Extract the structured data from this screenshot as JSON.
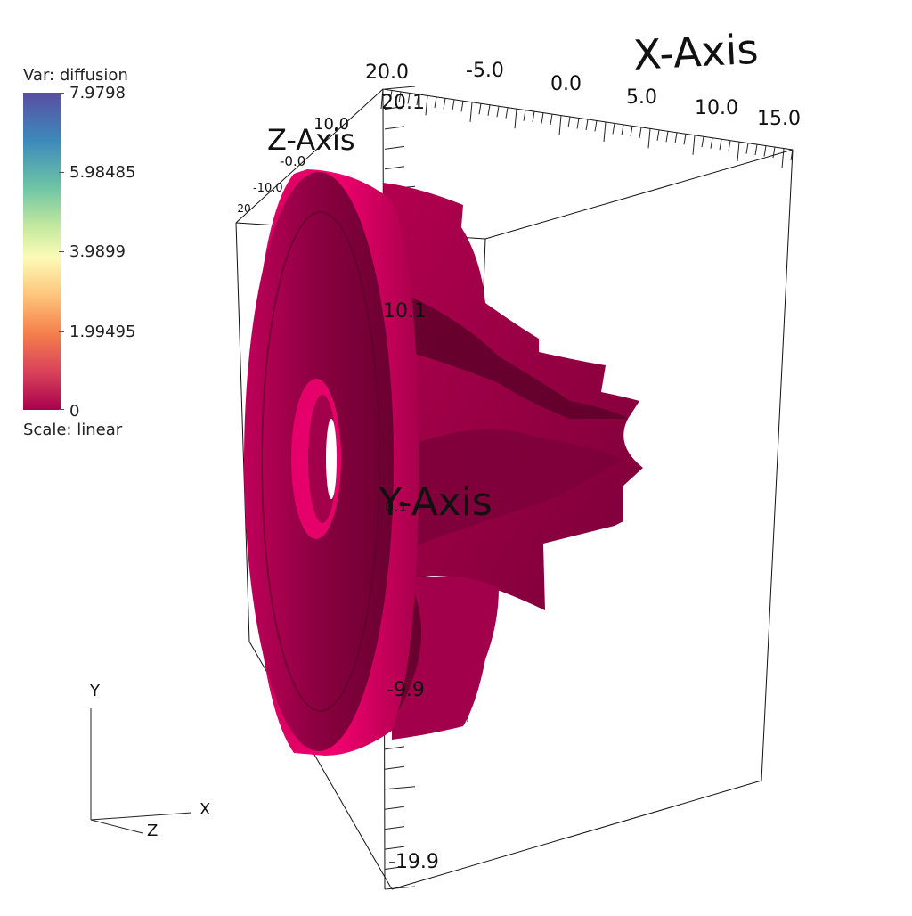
{
  "legend": {
    "title": "Var: diffusion",
    "scale": "Scale: linear",
    "ticks": [
      "7.9798",
      "5.98485",
      "3.9899",
      "1.99495",
      "0"
    ],
    "colormap": [
      "#5a4ea2",
      "#3c89bb",
      "#6ec5a5",
      "#c3e89e",
      "#fcfbb7",
      "#fdc47a",
      "#f57e4c",
      "#d9425a",
      "#a8014d"
    ]
  },
  "axes": {
    "x_title": "X-Axis",
    "y_title": "Y-Axis",
    "z_title": "Z-Axis",
    "x_ticks": [
      "20.0",
      "-5.0",
      "0.0",
      "5.0",
      "10.0",
      "15.0"
    ],
    "y_ticks": [
      "20.1",
      "10.1",
      "0.1",
      "-9.9",
      "-19.9"
    ],
    "z_ticks": [
      "10.0",
      "-0.0",
      "-10.0",
      "-20"
    ]
  },
  "triad": {
    "x": "X",
    "y": "Y",
    "z": "Z"
  },
  "surface": {
    "color": "#a8014d",
    "shade": "#6a0030",
    "highlight": "#e8006a"
  }
}
